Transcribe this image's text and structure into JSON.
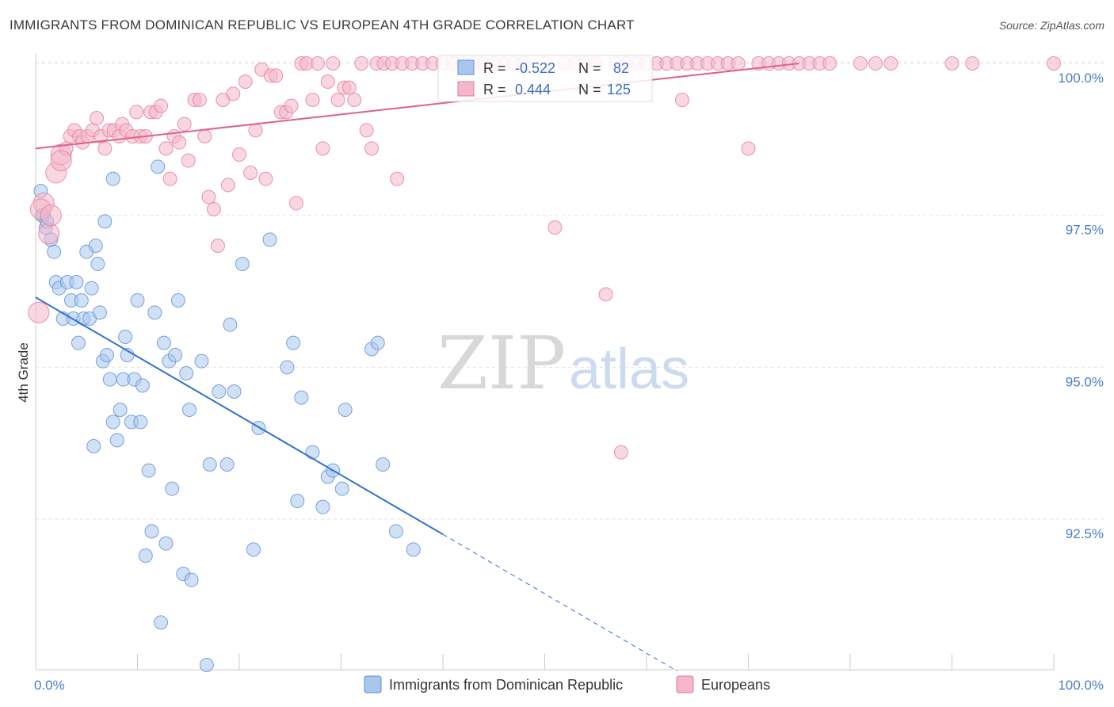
{
  "title": "IMMIGRANTS FROM DOMINICAN REPUBLIC VS EUROPEAN 4TH GRADE CORRELATION CHART",
  "source": "Source: ZipAtlas.com",
  "watermark": {
    "zip": "ZIP",
    "atlas": "atlas"
  },
  "colors": {
    "blue": "#5b8ed8",
    "blue_fill": "#a9c6ec",
    "pink": "#e6799c",
    "pink_fill": "#f4b6c9",
    "tick": "#4a7cc9"
  },
  "chart_data": {
    "type": "scatter",
    "title": "IMMIGRANTS FROM DOMINICAN REPUBLIC VS EUROPEAN 4TH GRADE CORRELATION CHART",
    "xlabel": "",
    "ylabel": "4th Grade",
    "xlim": [
      0,
      100
    ],
    "ylim": [
      90.0,
      100.5
    ],
    "x_tick_labels": [
      "0.0%",
      "100.0%"
    ],
    "y_ticks": [
      92.5,
      95.0,
      97.5,
      100.0
    ],
    "y_tick_labels": [
      "92.5%",
      "95.0%",
      "97.5%",
      "100.0%"
    ],
    "legend": {
      "series": [
        {
          "label": "Immigrants from Dominican Republic",
          "r_label": "R =",
          "r": "-0.522",
          "n_label": "N =",
          "n": "82"
        },
        {
          "label": "Europeans",
          "r_label": "R =",
          "r": "0.444",
          "n_label": "N =",
          "n": "125"
        }
      ]
    },
    "series": [
      {
        "name": "Immigrants from Dominican Republic",
        "color": "#5b8ed8",
        "trend": {
          "x0": 0,
          "y0": 96.15,
          "x1": 40,
          "y1": 92.25,
          "dash_to_x": 63,
          "dash_to_y": 90.0
        },
        "points": [
          [
            0.5,
            97.9
          ],
          [
            0.8,
            97.5
          ],
          [
            1.0,
            97.3
          ],
          [
            1.5,
            97.1
          ],
          [
            1.8,
            96.9
          ],
          [
            2.0,
            96.4
          ],
          [
            2.3,
            96.3
          ],
          [
            2.7,
            95.8
          ],
          [
            3.1,
            96.4
          ],
          [
            3.5,
            96.1
          ],
          [
            3.7,
            95.8
          ],
          [
            4.0,
            96.4
          ],
          [
            4.2,
            95.4
          ],
          [
            4.5,
            96.1
          ],
          [
            4.7,
            95.8
          ],
          [
            5.0,
            96.9
          ],
          [
            5.3,
            95.8
          ],
          [
            5.5,
            96.3
          ],
          [
            5.7,
            93.7
          ],
          [
            5.9,
            97.0
          ],
          [
            6.1,
            96.7
          ],
          [
            6.3,
            95.9
          ],
          [
            6.6,
            95.1
          ],
          [
            6.8,
            97.4
          ],
          [
            7.0,
            95.2
          ],
          [
            7.3,
            94.8
          ],
          [
            7.6,
            94.1
          ],
          [
            8.0,
            93.8
          ],
          [
            8.3,
            94.3
          ],
          [
            8.6,
            94.8
          ],
          [
            8.8,
            95.5
          ],
          [
            9.0,
            95.2
          ],
          [
            9.4,
            94.1
          ],
          [
            9.7,
            94.8
          ],
          [
            10.0,
            96.1
          ],
          [
            10.3,
            94.1
          ],
          [
            10.5,
            94.7
          ],
          [
            10.8,
            91.9
          ],
          [
            11.1,
            93.3
          ],
          [
            11.4,
            92.3
          ],
          [
            11.7,
            95.9
          ],
          [
            12.0,
            98.3
          ],
          [
            12.3,
            90.8
          ],
          [
            12.6,
            95.4
          ],
          [
            12.8,
            92.1
          ],
          [
            13.1,
            95.1
          ],
          [
            13.4,
            93.0
          ],
          [
            13.7,
            95.2
          ],
          [
            14.0,
            96.1
          ],
          [
            14.5,
            91.6
          ],
          [
            14.8,
            94.9
          ],
          [
            15.1,
            94.3
          ],
          [
            15.3,
            91.5
          ],
          [
            16.3,
            95.1
          ],
          [
            16.8,
            90.1
          ],
          [
            17.1,
            93.4
          ],
          [
            18.0,
            94.6
          ],
          [
            18.8,
            93.4
          ],
          [
            19.1,
            95.7
          ],
          [
            19.5,
            94.6
          ],
          [
            20.3,
            96.7
          ],
          [
            21.4,
            92.0
          ],
          [
            21.9,
            94.0
          ],
          [
            23.0,
            97.1
          ],
          [
            24.7,
            95.0
          ],
          [
            25.3,
            95.4
          ],
          [
            25.7,
            92.8
          ],
          [
            26.1,
            94.5
          ],
          [
            27.2,
            93.6
          ],
          [
            28.2,
            92.7
          ],
          [
            28.7,
            93.2
          ],
          [
            29.2,
            93.3
          ],
          [
            30.1,
            93.0
          ],
          [
            30.4,
            94.3
          ],
          [
            33.0,
            95.3
          ],
          [
            33.6,
            95.4
          ],
          [
            34.1,
            93.4
          ],
          [
            35.4,
            92.3
          ],
          [
            37.1,
            92.0
          ],
          [
            7.6,
            98.1
          ],
          [
            0.6,
            97.5
          ],
          [
            1.1,
            97.4
          ]
        ]
      },
      {
        "name": "Europeans",
        "color": "#e6799c",
        "trend": {
          "x0": 0,
          "y0": 98.6,
          "x1": 75,
          "y1": 100.0
        },
        "points": [
          [
            0.3,
            95.9
          ],
          [
            0.8,
            97.7
          ],
          [
            1.3,
            97.2
          ],
          [
            2.0,
            98.2
          ],
          [
            2.5,
            98.5
          ],
          [
            3.0,
            98.6
          ],
          [
            3.4,
            98.8
          ],
          [
            3.8,
            98.9
          ],
          [
            4.3,
            98.8
          ],
          [
            4.6,
            98.7
          ],
          [
            5.1,
            98.8
          ],
          [
            5.6,
            98.9
          ],
          [
            6.0,
            99.1
          ],
          [
            6.4,
            98.8
          ],
          [
            6.8,
            98.6
          ],
          [
            7.2,
            98.9
          ],
          [
            7.7,
            98.9
          ],
          [
            8.2,
            98.8
          ],
          [
            8.5,
            99.0
          ],
          [
            8.9,
            98.9
          ],
          [
            9.5,
            98.8
          ],
          [
            9.9,
            99.2
          ],
          [
            10.3,
            98.8
          ],
          [
            10.8,
            98.8
          ],
          [
            11.3,
            99.2
          ],
          [
            11.8,
            99.2
          ],
          [
            12.3,
            99.3
          ],
          [
            12.8,
            98.6
          ],
          [
            13.2,
            98.1
          ],
          [
            13.6,
            98.8
          ],
          [
            14.1,
            98.7
          ],
          [
            14.6,
            99.0
          ],
          [
            15.0,
            98.4
          ],
          [
            15.6,
            99.4
          ],
          [
            16.1,
            99.4
          ],
          [
            16.6,
            98.8
          ],
          [
            17.0,
            97.8
          ],
          [
            17.5,
            97.6
          ],
          [
            17.9,
            97.0
          ],
          [
            18.4,
            99.4
          ],
          [
            18.9,
            98.0
          ],
          [
            19.4,
            99.5
          ],
          [
            20.0,
            98.5
          ],
          [
            20.6,
            99.7
          ],
          [
            21.1,
            98.2
          ],
          [
            21.6,
            98.9
          ],
          [
            22.2,
            99.9
          ],
          [
            22.6,
            98.1
          ],
          [
            23.1,
            99.8
          ],
          [
            23.6,
            99.8
          ],
          [
            24.1,
            99.2
          ],
          [
            24.6,
            99.2
          ],
          [
            25.1,
            99.3
          ],
          [
            25.6,
            97.7
          ],
          [
            26.1,
            100.0
          ],
          [
            26.6,
            100.0
          ],
          [
            27.2,
            99.4
          ],
          [
            27.7,
            100.0
          ],
          [
            28.2,
            98.6
          ],
          [
            28.7,
            99.7
          ],
          [
            29.2,
            100.0
          ],
          [
            29.7,
            99.4
          ],
          [
            30.3,
            99.6
          ],
          [
            30.8,
            99.6
          ],
          [
            31.3,
            99.4
          ],
          [
            32.0,
            100.0
          ],
          [
            32.5,
            98.9
          ],
          [
            33.0,
            98.6
          ],
          [
            33.5,
            100.0
          ],
          [
            34.2,
            100.0
          ],
          [
            35.0,
            100.0
          ],
          [
            35.5,
            98.1
          ],
          [
            36.0,
            100.0
          ],
          [
            37.0,
            100.0
          ],
          [
            38.0,
            100.0
          ],
          [
            39.0,
            100.0
          ],
          [
            40.0,
            100.0
          ],
          [
            41.0,
            100.0
          ],
          [
            42.0,
            100.0
          ],
          [
            43.0,
            100.0
          ],
          [
            44.0,
            100.0
          ],
          [
            45.0,
            100.0
          ],
          [
            46.0,
            100.0
          ],
          [
            47.0,
            100.0
          ],
          [
            48.0,
            100.0
          ],
          [
            50.0,
            100.0
          ],
          [
            51.0,
            97.3
          ],
          [
            52.0,
            100.0
          ],
          [
            53.0,
            100.0
          ],
          [
            54.0,
            100.0
          ],
          [
            55.0,
            100.0
          ],
          [
            56.0,
            96.2
          ],
          [
            57.0,
            100.0
          ],
          [
            57.5,
            93.6
          ],
          [
            58.0,
            100.0
          ],
          [
            59.0,
            100.0
          ],
          [
            60.0,
            100.0
          ],
          [
            61.0,
            100.0
          ],
          [
            62.0,
            100.0
          ],
          [
            63.0,
            100.0
          ],
          [
            64.0,
            100.0
          ],
          [
            65.0,
            100.0
          ],
          [
            66.0,
            100.0
          ],
          [
            67.0,
            100.0
          ],
          [
            68.0,
            100.0
          ],
          [
            69.0,
            100.0
          ],
          [
            70.0,
            98.6
          ],
          [
            71.0,
            100.0
          ],
          [
            72.0,
            100.0
          ],
          [
            73.0,
            100.0
          ],
          [
            74.0,
            100.0
          ],
          [
            75.0,
            100.0
          ],
          [
            76.0,
            100.0
          ],
          [
            77.0,
            100.0
          ],
          [
            78.0,
            100.0
          ],
          [
            81.0,
            100.0
          ],
          [
            82.5,
            100.0
          ],
          [
            84.0,
            100.0
          ],
          [
            90.0,
            100.0
          ],
          [
            92.0,
            100.0
          ],
          [
            100.0,
            100.0
          ],
          [
            0.5,
            97.6
          ],
          [
            1.5,
            97.5
          ],
          [
            2.5,
            98.4
          ],
          [
            63.5,
            99.4
          ]
        ]
      }
    ]
  }
}
